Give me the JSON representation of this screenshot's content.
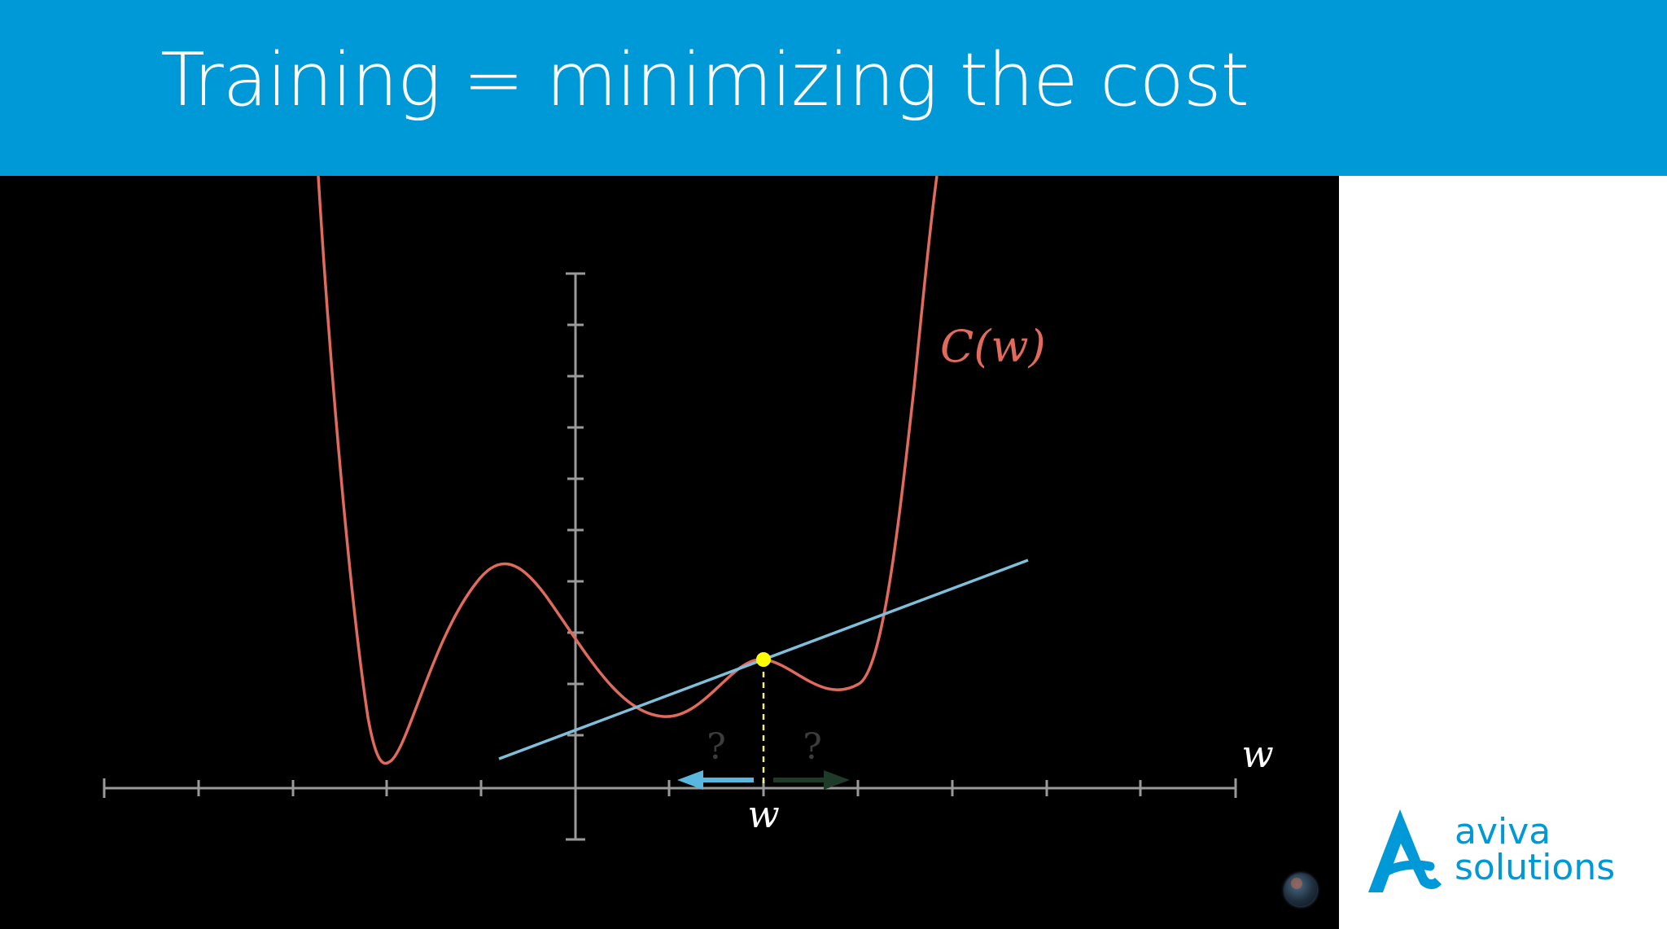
{
  "slide": {
    "title": "Training = minimizing the cost"
  },
  "diagram": {
    "curve_label": "C(w)",
    "axis_label": "w",
    "point_label": "w",
    "left_question": "?",
    "right_question": "?",
    "colors": {
      "curve": "#e06a5c",
      "tangent": "#7fbfd9",
      "point": "#ffff00",
      "axis": "#9a9a9a",
      "left_arrow": "#5ab8e0",
      "right_arrow": "#1e3a28",
      "background": "#000000"
    }
  },
  "logo": {
    "line1": "aviva",
    "line2": "solutions",
    "color": "#0099d8"
  }
}
